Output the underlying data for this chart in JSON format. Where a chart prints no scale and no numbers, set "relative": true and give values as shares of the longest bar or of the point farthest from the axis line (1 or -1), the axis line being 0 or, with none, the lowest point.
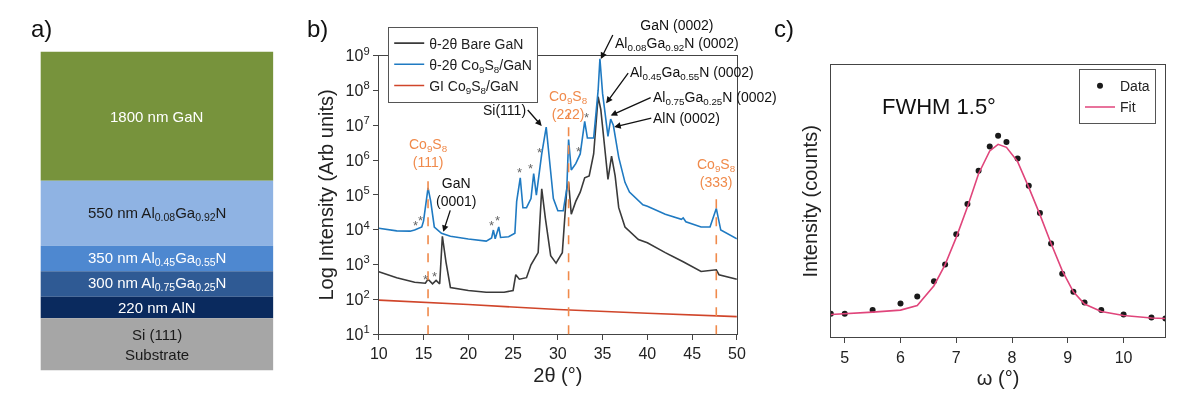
{
  "chart_data": [
    {
      "type": "other",
      "title": "a)",
      "annotations": [
        "1800 nm GaN",
        "550 nm Al$_{0.08}$Ga$_{0.92}$N",
        "350 nm Al$_{0.45}$Ga$_{0.55}$N",
        "300 nm Al$_{0.75}$Ga$_{0.25}$N",
        "220 nm AlN",
        "Si (111)\nSubstrate"
      ],
      "colors": [
        "#77933c",
        "#8fb3e3",
        "#4e88d0",
        "#2f5a94",
        "#0a2a5e",
        "#a6a6a6"
      ]
    },
    {
      "type": "line",
      "title": "b)",
      "xlabel": "2θ (°)",
      "ylabel": "Log Intensity (Arb units)",
      "log": "y",
      "legend": "top left",
      "xlim": [
        10,
        50
      ],
      "xticks": [
        10,
        15,
        20,
        25,
        30,
        35,
        40,
        45,
        50
      ],
      "ylim": [
        10,
        1000000000
      ],
      "yticks": [
        {
          "value": 10,
          "label": "10$^{1}$"
        },
        {
          "value": 100,
          "label": "10$^{2}$"
        },
        {
          "value": 1000,
          "label": "10$^{3}$"
        },
        {
          "value": 10000,
          "label": "10$^{4}$"
        },
        {
          "value": 100000,
          "label": "10$^{5}$"
        },
        {
          "value": 1000000,
          "label": "10$^{6}$"
        },
        {
          "value": 10000000,
          "label": "10$^{7}$"
        },
        {
          "value": 100000000,
          "label": "10$^{8}$"
        },
        {
          "value": 1000000000,
          "label": "10$^{9}$"
        }
      ],
      "series": [
        {
          "name": "θ-2θ Bare GaN",
          "color": "#3a3a3a",
          "x": [
            10,
            12,
            14,
            15.2,
            15.5,
            16,
            16.4,
            16.8,
            17.1,
            17.5,
            18,
            20,
            22,
            24,
            25,
            25.3,
            25.7,
            26.5,
            27,
            27.8,
            28.2,
            28.6,
            29.2,
            29.8,
            30.5,
            31.0,
            31.2,
            31.5,
            32,
            32.5,
            33.0,
            33.5,
            34.0,
            34.5,
            34.8,
            35.2,
            35.6,
            36.0,
            36.4,
            36.8,
            37.5,
            39,
            40,
            42,
            44,
            46,
            47.7,
            48,
            50
          ],
          "values": [
            620,
            420,
            310,
            290,
            380,
            280,
            350,
            280,
            6500,
            1200,
            220,
            180,
            160,
            160,
            180,
            510,
            380,
            420,
            980,
            2200,
            150000,
            22000,
            1800,
            1100,
            2200,
            150000,
            230000,
            28000,
            65000,
            120000,
            310000,
            350000,
            1500000,
            66000000,
            28000000,
            2800000,
            280000,
            1300000,
            350000,
            43000,
            12000,
            5200,
            4200,
            2200,
            1200,
            630,
            710,
            510,
            380
          ]
        },
        {
          "name": "θ-2θ Co$_{9}$S$_{8}$/GaN",
          "color": "#1f7ac2",
          "x": [
            10,
            12,
            13.5,
            14,
            14.8,
            15.0,
            15.5,
            15.8,
            16.2,
            17,
            18,
            20,
            22,
            22.6,
            22.8,
            23.0,
            23.4,
            23.6,
            24.5,
            25.2,
            25.4,
            25.8,
            26.1,
            26.5,
            27,
            27.3,
            27.6,
            28.2,
            28.7,
            29.0,
            29.5,
            30,
            30.6,
            31.0,
            31.2,
            31.5,
            32.0,
            32.5,
            33.0,
            33.3,
            34.0,
            34.5,
            34.7,
            35.0,
            35.2,
            35.6,
            35.9,
            36.2,
            36.8,
            37.5,
            38,
            39.5,
            40,
            42,
            43.8,
            44,
            44.3,
            46,
            47,
            47.7,
            48.2,
            50
          ],
          "values": [
            11000,
            9300,
            9100,
            9800,
            12000,
            18000,
            160000,
            65000,
            12000,
            7900,
            6500,
            5400,
            4700,
            5800,
            9800,
            5500,
            12000,
            6000,
            6300,
            7900,
            65000,
            310000,
            43000,
            43000,
            79000,
            410000,
            98000,
            1500000,
            8900000,
            1500000,
            79000,
            35000,
            35000,
            150000,
            3900000,
            520000,
            790000,
            1500000,
            13000000,
            4300000,
            4300000,
            100000000,
            810000000,
            81000000,
            32000000,
            4800000,
            15000000,
            10000000,
            1200000,
            230000,
            120000,
            52000,
            47000,
            28000,
            20000,
            22000,
            17000,
            12000,
            12000,
            41000,
            9800,
            5500
          ]
        },
        {
          "name": "GI Co$_{9}$S$_{8}$/GaN",
          "color": "#d0452a",
          "x": [
            10,
            20,
            30,
            40,
            50
          ],
          "values": [
            95,
            71,
            51,
            40,
            32
          ]
        }
      ],
      "ref_lines": [
        {
          "axis": "x",
          "value": 15.5,
          "label": "Co$_{9}$S$_{8}$\n(111)",
          "color": "#f08a4b",
          "line_style": "dashed"
        },
        {
          "axis": "x",
          "value": 31.2,
          "label": "Co$_{9}$S$_{8}$\n(222)",
          "color": "#f08a4b",
          "line_style": "dashed"
        },
        {
          "axis": "x",
          "value": 47.7,
          "label": "Co$_{9}$S$_{8}$\n(333)",
          "color": "#f08a4b",
          "line_style": "dashed"
        }
      ],
      "annotations": [
        {
          "text": "GaN (0002)\nAl$_{0.08}$Ga$_{0.92}$N (0002)",
          "x": 34.8,
          "y": 800000000
        },
        {
          "text": "Al$_{0.45}$Ga$_{0.55}$N (0002)",
          "x": 35.4,
          "y": 43000000
        },
        {
          "text": "Al$_{0.75}$Ga$_{0.25}$N (0002)",
          "x": 35.9,
          "y": 19000000
        },
        {
          "text": "AlN (0002)",
          "x": 36.3,
          "y": 8900000
        },
        {
          "text": "Si(111)",
          "x": 28.2,
          "y": 9500000
        },
        {
          "text": "GaN\n(0001)",
          "x": 17.2,
          "y": 8700
        },
        "*",
        "*",
        "*",
        "*",
        "*",
        "*",
        "*",
        "*",
        "*",
        "*",
        "*"
      ]
    },
    {
      "type": "scatter",
      "title": "c)",
      "xlabel": "ω (°)",
      "ylabel": "Intensity (counts)",
      "relative": true,
      "legend": "top right",
      "xlim": [
        4.75,
        10.75
      ],
      "xticks": [
        5,
        6,
        7,
        8,
        9,
        10
      ],
      "annotations": [
        "FWHM 1.5°"
      ],
      "series": [
        {
          "name": "Data",
          "marker": "circle",
          "color": "#1a1a1a",
          "x": [
            4.75,
            5.0,
            5.5,
            6.0,
            6.3,
            6.6,
            6.8,
            7.0,
            7.2,
            7.4,
            7.6,
            7.75,
            7.9,
            8.1,
            8.3,
            8.5,
            8.7,
            8.9,
            9.1,
            9.3,
            9.6,
            10.0,
            10.5,
            10.75
          ],
          "values": [
            0.117,
            0.117,
            0.135,
            0.168,
            0.203,
            0.278,
            0.361,
            0.511,
            0.662,
            0.827,
            0.947,
            1.0,
            0.97,
            0.887,
            0.752,
            0.617,
            0.466,
            0.316,
            0.226,
            0.173,
            0.135,
            0.113,
            0.098,
            0.093
          ]
        },
        {
          "name": "Fit",
          "type": "line",
          "color": "#e0457b",
          "x": [
            4.75,
            5.5,
            6.0,
            6.3,
            6.6,
            6.8,
            7.0,
            7.2,
            7.4,
            7.6,
            7.75,
            7.9,
            8.1,
            8.3,
            8.5,
            8.7,
            8.9,
            9.1,
            9.3,
            9.6,
            10.0,
            10.5,
            10.75
          ],
          "values": [
            0.113,
            0.125,
            0.135,
            0.158,
            0.256,
            0.361,
            0.496,
            0.647,
            0.812,
            0.925,
            0.958,
            0.943,
            0.872,
            0.744,
            0.609,
            0.466,
            0.331,
            0.226,
            0.165,
            0.128,
            0.108,
            0.096,
            0.093
          ]
        }
      ]
    }
  ]
}
